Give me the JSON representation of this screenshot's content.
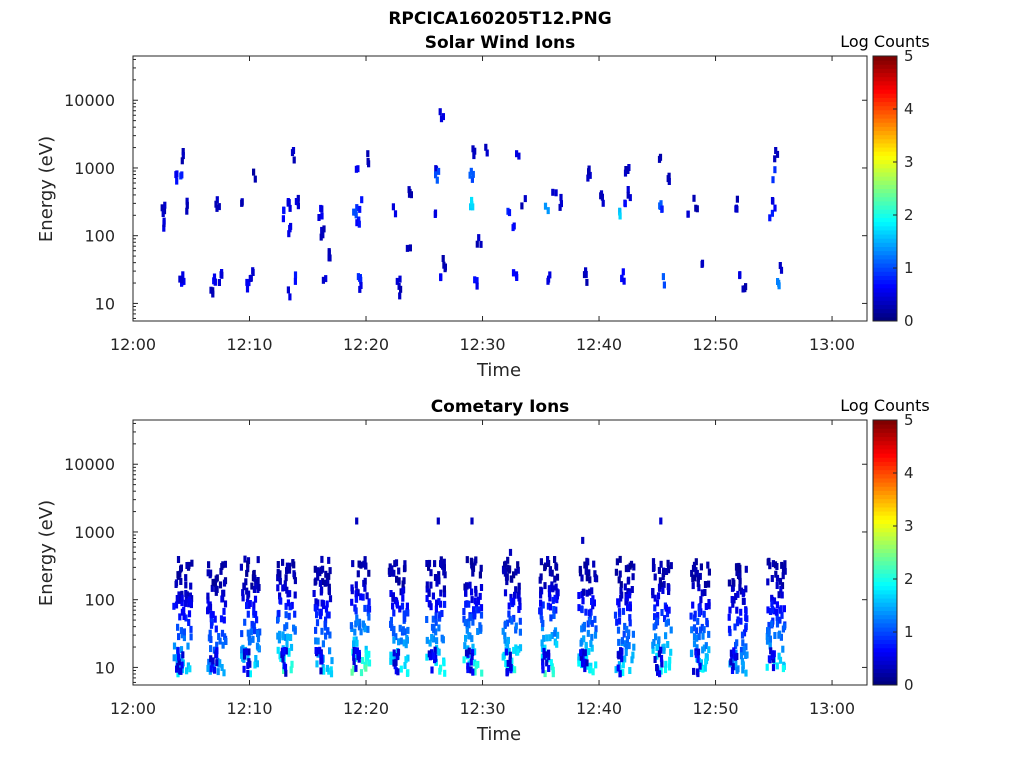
{
  "figure": {
    "title": "RPCICA160205T12.PNG"
  },
  "chart_data": [
    {
      "type": "heatmap",
      "title": "Solar Wind Ions",
      "xlabel": "Time",
      "ylabel": "Energy (eV)",
      "xlim": [
        "12:00",
        "13:03"
      ],
      "xticks": [
        "12:00",
        "12:10",
        "12:20",
        "12:30",
        "12:40",
        "12:50",
        "13:00"
      ],
      "ylim": [
        5.5,
        45000
      ],
      "yscale": "log",
      "yticks": [
        {
          "value": 10,
          "label": "10"
        },
        {
          "value": 100,
          "label": "100"
        },
        {
          "value": 1000,
          "label": "1000"
        },
        {
          "value": 10000,
          "label": "10000"
        }
      ],
      "colorbar": {
        "label": "Log Counts",
        "range": [
          0,
          5
        ],
        "ticks": [
          "0",
          "1",
          "2",
          "3",
          "4",
          "5"
        ],
        "colormap": "jet"
      },
      "bursts_min": [
        4.2,
        7.1,
        10,
        13.1,
        16.2,
        19.4,
        22.7,
        25.9,
        29.1,
        32.4,
        35.6,
        38.9,
        42.1,
        45.3,
        48.6,
        51.8,
        55.1
      ],
      "cells": [
        [
          2.6,
          140,
          0.4
        ],
        [
          2.6,
          250,
          0.3
        ],
        [
          3.8,
          700,
          0.6
        ],
        [
          4.1,
          800,
          0.8
        ],
        [
          4.2,
          1500,
          0.3
        ],
        [
          4.3,
          22,
          0.6
        ],
        [
          4.1,
          25,
          0.4
        ],
        [
          4.6,
          280,
          0.3
        ],
        [
          6.8,
          13,
          0.3
        ],
        [
          7.0,
          20,
          0.6
        ],
        [
          7.3,
          300,
          0.3
        ],
        [
          7.5,
          25,
          0.4
        ],
        [
          9.8,
          19,
          0.6
        ],
        [
          10.2,
          25,
          0.4
        ],
        [
          9.5,
          320,
          0.3
        ],
        [
          10.4,
          800,
          0.2
        ],
        [
          13.0,
          200,
          0.6
        ],
        [
          13.4,
          280,
          0.5
        ],
        [
          13.5,
          130,
          0.5
        ],
        [
          13.8,
          22,
          0.7
        ],
        [
          13.5,
          13,
          0.4
        ],
        [
          13.7,
          1500,
          0.3
        ],
        [
          14.1,
          300,
          0.4
        ],
        [
          16.1,
          210,
          0.5
        ],
        [
          16.3,
          110,
          0.3
        ],
        [
          16.5,
          25,
          0.4
        ],
        [
          16.8,
          55,
          0.3
        ],
        [
          19.1,
          230,
          0.9
        ],
        [
          19.3,
          170,
          0.7
        ],
        [
          19.6,
          300,
          0.6
        ],
        [
          19.4,
          22,
          0.8
        ],
        [
          19.6,
          15,
          0.5
        ],
        [
          19.2,
          800,
          0.5
        ],
        [
          20.1,
          1400,
          0.3
        ],
        [
          22.5,
          250,
          0.5
        ],
        [
          22.8,
          25,
          0.5
        ],
        [
          23.0,
          15,
          0.3
        ],
        [
          23.8,
          450,
          0.3
        ],
        [
          23.7,
          55,
          0.3
        ],
        [
          25.8,
          230,
          0.5
        ],
        [
          26.0,
          1000,
          0.4
        ],
        [
          26.1,
          800,
          1.0
        ],
        [
          26.3,
          25,
          0.5
        ],
        [
          26.5,
          5600,
          0.4
        ],
        [
          26.7,
          40,
          0.3
        ],
        [
          29.0,
          300,
          1.7
        ],
        [
          29.1,
          800,
          1.0
        ],
        [
          29.3,
          1600,
          0.4
        ],
        [
          29.5,
          22,
          0.6
        ],
        [
          29.7,
          80,
          0.3
        ],
        [
          30.3,
          1800,
          0.3
        ],
        [
          32.3,
          220,
          0.8
        ],
        [
          32.6,
          150,
          0.6
        ],
        [
          32.8,
          25,
          0.6
        ],
        [
          33.0,
          1400,
          0.4
        ],
        [
          33.5,
          300,
          0.3
        ],
        [
          35.5,
          250,
          1.4
        ],
        [
          35.7,
          22,
          0.5
        ],
        [
          36.2,
          400,
          0.4
        ],
        [
          36.6,
          300,
          0.3
        ],
        [
          38.8,
          25,
          0.3
        ],
        [
          39.1,
          800,
          0.3
        ],
        [
          40.3,
          350,
          0.3
        ],
        [
          41.8,
          220,
          1.6
        ],
        [
          42.1,
          280,
          0.6
        ],
        [
          42.0,
          25,
          0.6
        ],
        [
          42.4,
          1000,
          0.3
        ],
        [
          42.6,
          400,
          0.4
        ],
        [
          45.2,
          250,
          1.0
        ],
        [
          45.4,
          300,
          0.8
        ],
        [
          45.6,
          22,
          1.0
        ],
        [
          45.2,
          1500,
          0.3
        ],
        [
          46.0,
          700,
          0.3
        ],
        [
          47.5,
          200,
          0.4
        ],
        [
          48.3,
          300,
          0.3
        ],
        [
          49.0,
          35,
          0.3
        ],
        [
          51.8,
          300,
          0.3
        ],
        [
          52.0,
          25,
          0.4
        ],
        [
          52.5,
          20,
          0.3
        ],
        [
          54.8,
          220,
          0.7
        ],
        [
          55.0,
          300,
          0.5
        ],
        [
          55.1,
          800,
          0.9
        ],
        [
          55.2,
          1500,
          0.3
        ],
        [
          55.4,
          22,
          1.2
        ],
        [
          55.6,
          35,
          0.3
        ]
      ]
    },
    {
      "type": "heatmap",
      "title": "Cometary Ions",
      "xlabel": "Time",
      "ylabel": "Energy (eV)",
      "xlim": [
        "12:00",
        "13:03"
      ],
      "xticks": [
        "12:00",
        "12:10",
        "12:20",
        "12:30",
        "12:40",
        "12:50",
        "13:00"
      ],
      "ylim": [
        5.5,
        45000
      ],
      "yscale": "log",
      "yticks": [
        {
          "value": 10,
          "label": "10"
        },
        {
          "value": 100,
          "label": "100"
        },
        {
          "value": 1000,
          "label": "1000"
        },
        {
          "value": 10000,
          "label": "10000"
        }
      ],
      "colorbar": {
        "label": "Log Counts",
        "range": [
          0,
          5
        ],
        "ticks": [
          "0",
          "1",
          "2",
          "3",
          "4",
          "5"
        ],
        "colormap": "jet"
      },
      "bursts_min": [
        4.2,
        7.1,
        10,
        13.1,
        16.2,
        19.4,
        22.7,
        25.9,
        29.1,
        32.4,
        35.6,
        38.9,
        42.1,
        45.3,
        48.6,
        51.8,
        55.1
      ],
      "burst_intensity": [
        1.4,
        1.2,
        1.5,
        1.9,
        1.5,
        2.0,
        1.6,
        1.7,
        1.8,
        1.8,
        1.9,
        1.7,
        1.5,
        1.7,
        1.6,
        1.2,
        1.6
      ],
      "sparse_points": [
        [
          19.2,
          1450,
          0.3
        ],
        [
          26.2,
          1450,
          0.3
        ],
        [
          29.1,
          1450,
          0.3
        ],
        [
          38.6,
          750,
          0.3
        ],
        [
          45.3,
          1450,
          0.4
        ],
        [
          32.4,
          500,
          0.3
        ]
      ]
    }
  ]
}
